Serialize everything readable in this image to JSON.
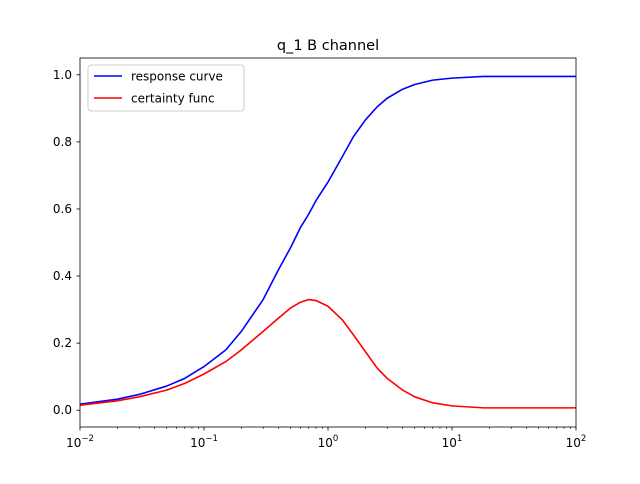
{
  "chart_data": {
    "type": "line",
    "title": "q_1 B channel",
    "xlabel": "",
    "ylabel": "",
    "x_scale": "log",
    "xlim": [
      0.01,
      100
    ],
    "ylim": [
      -0.05,
      1.05
    ],
    "grid": false,
    "legend_position": "top-left",
    "x_ticks": [
      {
        "value": 0.01,
        "base": "10",
        "exp": "−2"
      },
      {
        "value": 0.1,
        "base": "10",
        "exp": "−1"
      },
      {
        "value": 1,
        "base": "10",
        "exp": "0"
      },
      {
        "value": 10,
        "base": "10",
        "exp": "1"
      },
      {
        "value": 100,
        "base": "10",
        "exp": "2"
      }
    ],
    "y_ticks": [
      {
        "value": 0.0,
        "label": "0.0"
      },
      {
        "value": 0.2,
        "label": "0.2"
      },
      {
        "value": 0.4,
        "label": "0.4"
      },
      {
        "value": 0.6,
        "label": "0.6"
      },
      {
        "value": 0.8,
        "label": "0.8"
      },
      {
        "value": 1.0,
        "label": "1.0"
      }
    ],
    "series": [
      {
        "name": "response curve",
        "color": "#0000ff",
        "points": [
          [
            0.01,
            0.018
          ],
          [
            0.02,
            0.033
          ],
          [
            0.03,
            0.047
          ],
          [
            0.05,
            0.072
          ],
          [
            0.07,
            0.095
          ],
          [
            0.1,
            0.13
          ],
          [
            0.15,
            0.18
          ],
          [
            0.2,
            0.235
          ],
          [
            0.3,
            0.33
          ],
          [
            0.4,
            0.42
          ],
          [
            0.5,
            0.485
          ],
          [
            0.6,
            0.545
          ],
          [
            0.7,
            0.585
          ],
          [
            0.8,
            0.625
          ],
          [
            1.0,
            0.68
          ],
          [
            1.3,
            0.755
          ],
          [
            1.6,
            0.815
          ],
          [
            2.0,
            0.865
          ],
          [
            2.5,
            0.905
          ],
          [
            3.0,
            0.93
          ],
          [
            4.0,
            0.957
          ],
          [
            5.0,
            0.971
          ],
          [
            7.0,
            0.984
          ],
          [
            10.0,
            0.99
          ],
          [
            18.0,
            0.995
          ],
          [
            30.0,
            0.995
          ],
          [
            100.0,
            0.995
          ]
        ]
      },
      {
        "name": "certainty func",
        "color": "#ff0000",
        "points": [
          [
            0.01,
            0.015
          ],
          [
            0.02,
            0.028
          ],
          [
            0.03,
            0.04
          ],
          [
            0.05,
            0.06
          ],
          [
            0.07,
            0.08
          ],
          [
            0.1,
            0.108
          ],
          [
            0.15,
            0.145
          ],
          [
            0.2,
            0.18
          ],
          [
            0.3,
            0.235
          ],
          [
            0.4,
            0.275
          ],
          [
            0.5,
            0.305
          ],
          [
            0.6,
            0.322
          ],
          [
            0.7,
            0.33
          ],
          [
            0.8,
            0.327
          ],
          [
            1.0,
            0.31
          ],
          [
            1.3,
            0.27
          ],
          [
            1.6,
            0.225
          ],
          [
            2.0,
            0.175
          ],
          [
            2.5,
            0.125
          ],
          [
            3.0,
            0.095
          ],
          [
            4.0,
            0.06
          ],
          [
            5.0,
            0.04
          ],
          [
            7.0,
            0.022
          ],
          [
            10.0,
            0.013
          ],
          [
            18.0,
            0.007
          ],
          [
            30.0,
            0.007
          ],
          [
            100.0,
            0.007
          ]
        ]
      }
    ]
  }
}
